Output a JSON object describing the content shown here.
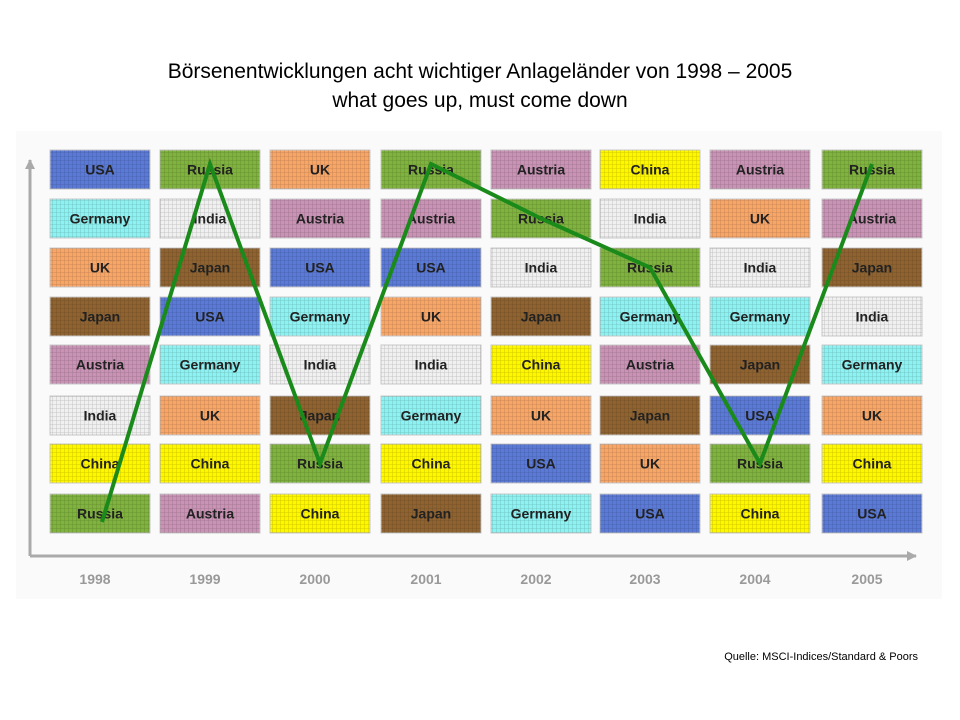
{
  "title": "Börsenentwicklungen acht wichtiger Anlageländer von 1998 – 2005",
  "subtitle": "what goes up, must come down",
  "source": "Quelle: MSCI-Indices/Standard & Poors",
  "colors": {
    "USA": "#5b7ad6",
    "Russia": "#7fb23e",
    "UK": "#f7a668",
    "Germany": "#8ff2f2",
    "Austria": "#c993b5",
    "Japan": "#8f6331",
    "India": "#f0f0f0",
    "China": "#fff700",
    "trend_line": "#1a8a1a",
    "axis": "#aaaaaa",
    "year_label": "#999999"
  },
  "chart_data": {
    "type": "table",
    "title": "Börsenentwicklungen acht wichtiger Anlageländer von 1998 – 2005",
    "subtitle": "what goes up, must come down",
    "years": [
      "1998",
      "1999",
      "2000",
      "2001",
      "2002",
      "2003",
      "2004",
      "2005"
    ],
    "rankings": {
      "1998": [
        "USA",
        "Germany",
        "UK",
        "Japan",
        "Austria",
        "India",
        "China",
        "Russia"
      ],
      "1999": [
        "Russia",
        "India",
        "Japan",
        "USA",
        "Germany",
        "UK",
        "China",
        "Austria"
      ],
      "2000": [
        "UK",
        "Austria",
        "USA",
        "Germany",
        "India",
        "Japan",
        "Russia",
        "China"
      ],
      "2001": [
        "Russia",
        "Austria",
        "USA",
        "UK",
        "India",
        "Germany",
        "China",
        "Japan"
      ],
      "2002": [
        "Austria",
        "Russia",
        "India",
        "Japan",
        "China",
        "UK",
        "USA",
        "Germany"
      ],
      "2003": [
        "China",
        "India",
        "Russia",
        "Germany",
        "Austria",
        "Japan",
        "UK",
        "USA"
      ],
      "2004": [
        "Austria",
        "UK",
        "India",
        "Germany",
        "Japan",
        "USA",
        "Russia",
        "China"
      ],
      "2005": [
        "Russia",
        "Austria",
        "Japan",
        "India",
        "Germany",
        "UK",
        "China",
        "USA"
      ]
    },
    "highlight_series": {
      "name": "Russia",
      "ranks": [
        8,
        1,
        7,
        1,
        2,
        3,
        7,
        1
      ]
    }
  }
}
